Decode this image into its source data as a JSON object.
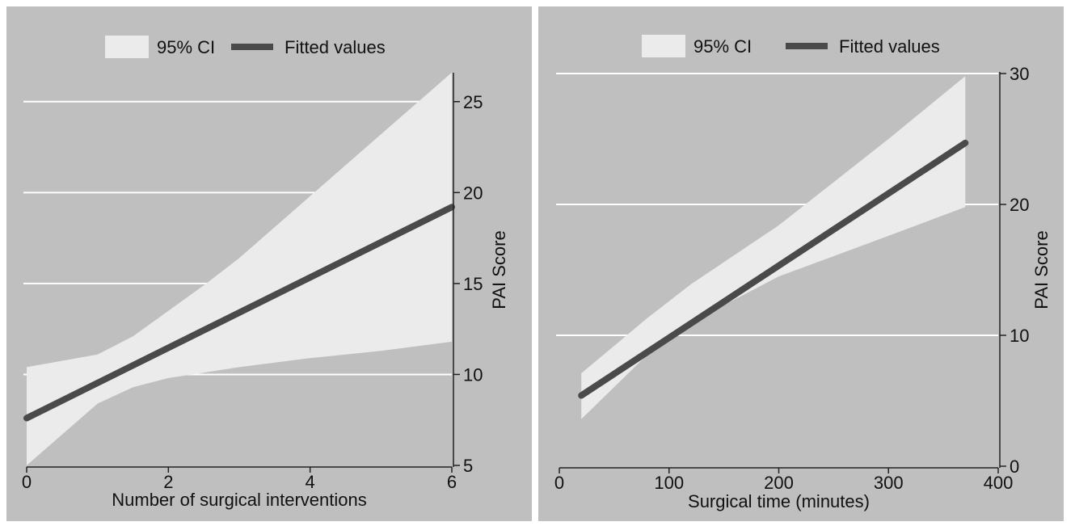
{
  "chart_data": [
    {
      "type": "line",
      "title": "",
      "xlabel": "Number of surgical interventions",
      "ylabel": "PAI Score",
      "xlim": [
        0,
        6
      ],
      "ylim": [
        5,
        26.5
      ],
      "x_ticks": [
        0,
        2,
        4,
        6
      ],
      "y_ticks": [
        5,
        10,
        15,
        20,
        25
      ],
      "y_axis_side": "right",
      "grid": true,
      "legend_position": "top",
      "legend": [
        "95% CI",
        "Fitted values"
      ],
      "series": [
        {
          "name": "Fitted values",
          "x": [
            0,
            6
          ],
          "y": [
            7.6,
            19.2
          ]
        },
        {
          "name": "95% CI",
          "x": [
            0,
            1,
            1.5,
            2,
            2.5,
            3,
            4,
            5,
            6
          ],
          "lower": [
            5.0,
            8.4,
            9.3,
            9.8,
            10.1,
            10.4,
            10.9,
            11.3,
            11.8
          ],
          "upper": [
            10.4,
            11.1,
            12.1,
            13.5,
            14.9,
            16.4,
            19.8,
            23.2,
            26.6
          ]
        }
      ]
    },
    {
      "type": "line",
      "title": "",
      "xlabel": "Surgical time (minutes)",
      "ylabel": "PAI Score",
      "xlim": [
        0,
        400
      ],
      "ylim": [
        0,
        30
      ],
      "x_ticks": [
        0,
        100,
        200,
        300,
        400
      ],
      "y_ticks": [
        0,
        10,
        20,
        30
      ],
      "y_axis_side": "right",
      "grid": true,
      "legend_position": "top",
      "legend": [
        "95% CI",
        "Fitted values"
      ],
      "series": [
        {
          "name": "Fitted values",
          "x": [
            20,
            370
          ],
          "y": [
            5.4,
            24.7
          ]
        },
        {
          "name": "95% CI",
          "x": [
            20,
            80,
            120,
            200,
            300,
            370
          ],
          "lower": [
            3.6,
            8.5,
            11.0,
            14.5,
            17.6,
            19.8
          ],
          "upper": [
            7.1,
            11.3,
            13.9,
            18.4,
            25.0,
            29.8
          ]
        }
      ]
    }
  ]
}
